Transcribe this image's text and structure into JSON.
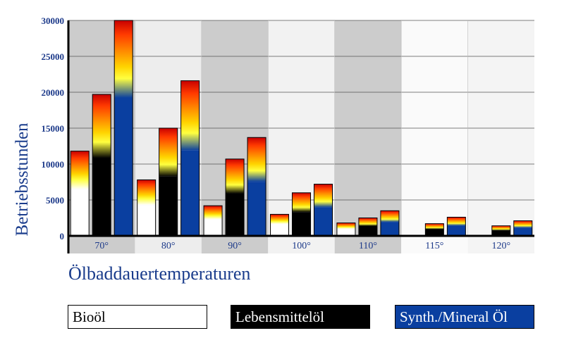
{
  "chart_data": {
    "type": "bar",
    "title": "",
    "xlabel": "Ölbaddauertemperaturen",
    "ylabel": "Betriebsstunden",
    "categories": [
      "70°",
      "80°",
      "90°",
      "100°",
      "110°",
      "115°",
      "120°"
    ],
    "yticks": [
      "0",
      "5000",
      "10000",
      "15000",
      "20000",
      "25000",
      "30000"
    ],
    "ylim": [
      0,
      30000
    ],
    "legend_placement": "bottom",
    "series": [
      {
        "name": "Bioöl",
        "color": "#ffffff",
        "values": [
          11800,
          7800,
          4200,
          3000,
          1800,
          null,
          null
        ]
      },
      {
        "name": "Lebensmittelöl",
        "color": "#000000",
        "values": [
          19700,
          15000,
          10700,
          6000,
          2500,
          1700,
          1400
        ]
      },
      {
        "name": "Synth./Mineral Öl",
        "color": "#0a3fa0",
        "values": [
          30000,
          21600,
          13700,
          7200,
          3500,
          2600,
          2100
        ]
      }
    ],
    "band_colors": [
      "#cccccc",
      "#ededed",
      "#cccccc",
      "#f2f2f2",
      "#cccccc",
      "#fafafa",
      "#f4f4f4"
    ]
  }
}
